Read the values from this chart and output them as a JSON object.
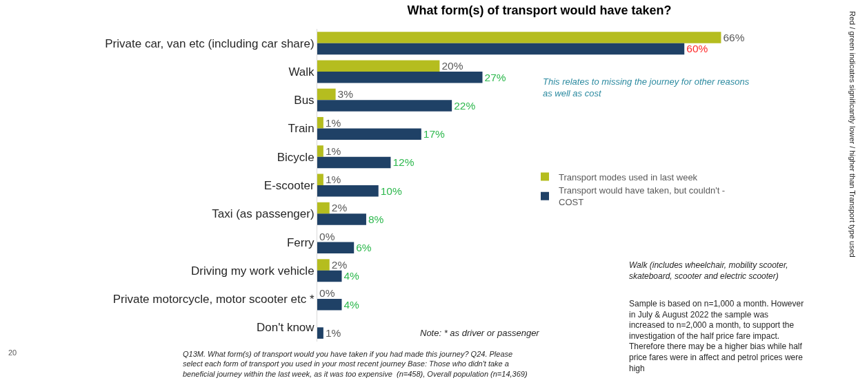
{
  "chart_data": {
    "type": "bar",
    "orientation": "horizontal",
    "title": "What form(s) of transport would have taken?",
    "categories": [
      "Private car, van etc (including car share)",
      "Walk",
      "Bus",
      "Train",
      "Bicycle",
      "E-scooter",
      "Taxi (as passenger)",
      "Ferry",
      "Driving my work vehicle",
      "Private motorcycle, motor scooter etc *",
      "Don't know"
    ],
    "series": [
      {
        "name": "Transport modes used in last week",
        "color": "#b5bd1f",
        "values": [
          66,
          20,
          3,
          1,
          1,
          1,
          2,
          0,
          2,
          0,
          null
        ],
        "value_labels": [
          "66%",
          "20%",
          "3%",
          "1%",
          "1%",
          "1%",
          "2%",
          "0%",
          "2%",
          "0%",
          null
        ]
      },
      {
        "name": "Transport would have taken, but couldn't -\nCOST",
        "color": "#1f4166",
        "values": [
          60,
          27,
          22,
          17,
          12,
          10,
          8,
          6,
          4,
          4,
          1
        ],
        "value_labels": [
          "60%",
          "27%",
          "22%",
          "17%",
          "12%",
          "10%",
          "8%",
          "6%",
          "4%",
          "4%",
          "1%"
        ]
      }
    ],
    "legend": "right",
    "annotations": [
      "This relates to missing the journey for other reasons\nas well as cost",
      "Note: * as driver or passenger",
      "Walk (includes wheelchair, mobility scooter,\nskateboard, scooter and electric scooter)",
      "Sample is based on n=1,000 a month. However\nin July & August 2022 the sample was\nincreased to n=2,000 a month, to support the\ninvestigation of the half price fare impact.\nTherefore there may be a higher bias while half\nprice fares were in affect and petrol prices were\nhigh",
      "Q13M. What form(s) of transport would you have taken if you had made this journey? Q24. Please\nselect each form of transport you used in your most recent journey Base: Those who didn't take a\nbeneficial journey within the last week, as it was too expensive  (n=458), Overall population (n=14,369)",
      "Red / green indicates significantly lower / higher than Transport type used",
      "20"
    ]
  }
}
